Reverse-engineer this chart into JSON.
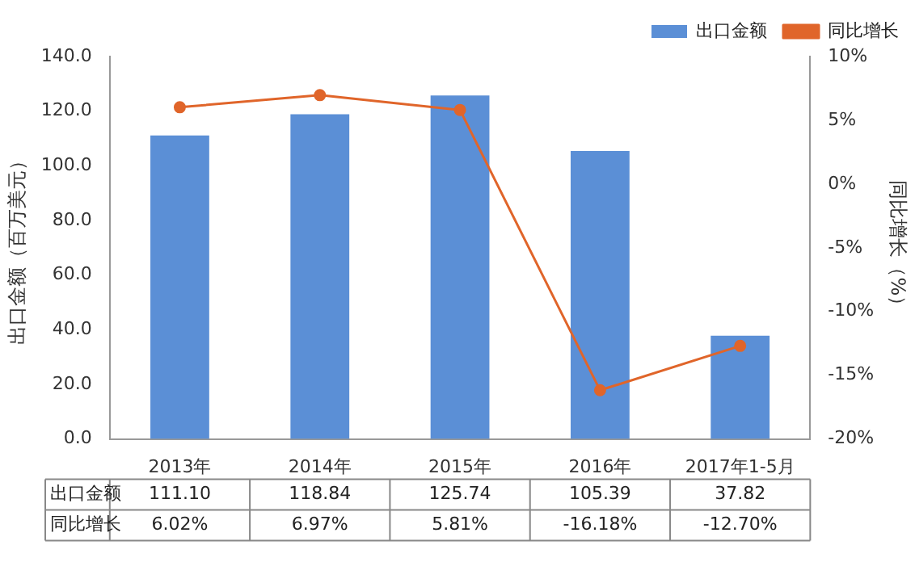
{
  "chart_data": {
    "type": "bar",
    "categories": [
      "2013年",
      "2014年",
      "2015年",
      "2016年",
      "2017年1-5月"
    ],
    "series": [
      {
        "name": "出口金额",
        "color": "#5b8fd6",
        "values": [
          111.1,
          118.84,
          125.74,
          105.39,
          37.82
        ],
        "value_labels": [
          "111.10",
          "118.84",
          "125.74",
          "105.39",
          "37.82"
        ]
      },
      {
        "name": "同比增长",
        "type": "line",
        "axis": "y2",
        "color": "#e0652a",
        "marker": "circle",
        "values": [
          6.02,
          6.97,
          5.81,
          -16.18,
          -12.7
        ],
        "value_labels": [
          "6.02%",
          "6.97%",
          "5.81%",
          "-16.18%",
          "-12.70%"
        ]
      }
    ],
    "ylabel": "出口金额（百万美元）",
    "y2label": "同比增长（%）",
    "ylim": [
      0,
      140
    ],
    "yticks": [
      {
        "value": 0,
        "label": "0.0"
      },
      {
        "value": 20,
        "label": "20.0"
      },
      {
        "value": 40,
        "label": "40.0"
      },
      {
        "value": 60,
        "label": "60.0"
      },
      {
        "value": 80,
        "label": "80.0"
      },
      {
        "value": 100,
        "label": "100.0"
      },
      {
        "value": 120,
        "label": "120.0"
      },
      {
        "value": 140,
        "label": "140.0"
      }
    ],
    "y2lim": [
      -20,
      10
    ],
    "y2ticks": [
      {
        "value": -20,
        "label": "-20%"
      },
      {
        "value": -15,
        "label": "-15%"
      },
      {
        "value": -10,
        "label": "-10%"
      },
      {
        "value": -5,
        "label": "-5%"
      },
      {
        "value": 0,
        "label": "0%"
      },
      {
        "value": 5,
        "label": "5%"
      },
      {
        "value": 10,
        "label": "10%"
      }
    ],
    "legend": "top right",
    "grid": false
  }
}
